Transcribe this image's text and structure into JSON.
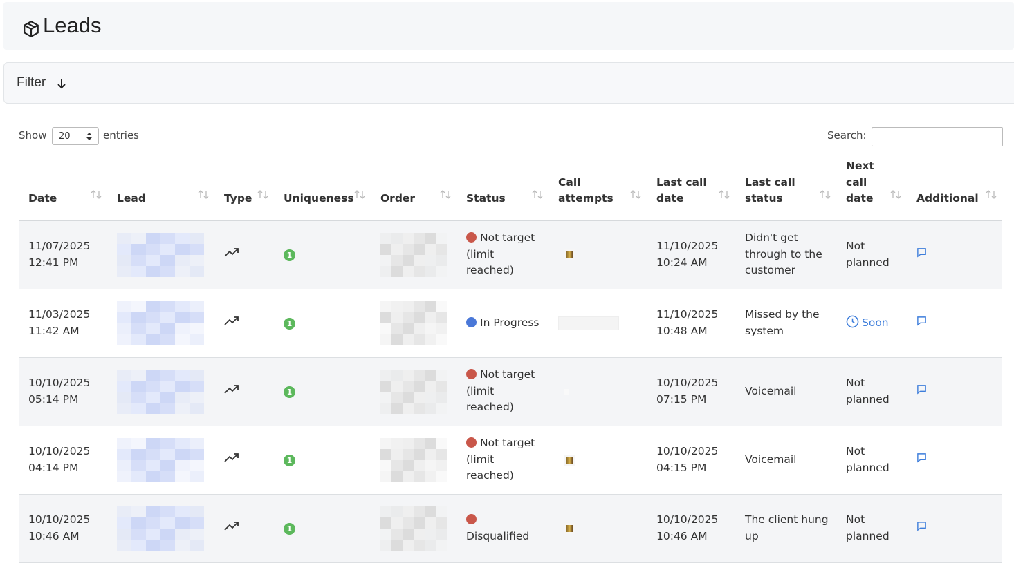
{
  "header": {
    "title": "Leads"
  },
  "filter": {
    "label": "Filter"
  },
  "controls": {
    "show_label": "Show",
    "page_size": "20",
    "entries_label": "entries",
    "search_label": "Search:"
  },
  "table": {
    "columns": [
      "Date",
      "Lead",
      "Type",
      "Uniqueness",
      "Order",
      "Status",
      "Call attempts",
      "Last call date",
      "Last call status",
      "Next call date",
      "Additional"
    ],
    "rows": [
      {
        "date": "11/07/2025",
        "time": "12:41 PM",
        "uniqueness": "1",
        "status": "Not target (limit reached)",
        "status_color": "#c9574a",
        "last_call_date": "11/10/2025",
        "last_call_time": "10:24 AM",
        "last_call_status": "Didn't get through to the customer",
        "next_call": "Not planned",
        "next_call_color": "#333333"
      },
      {
        "date": "11/03/2025",
        "time": "11:42 AM",
        "uniqueness": "1",
        "status": "In Progress",
        "status_color": "#4a78d8",
        "last_call_date": "11/10/2025",
        "last_call_time": "10:48 AM",
        "last_call_status": "Missed by the system",
        "next_call": "Soon",
        "next_call_color": "#3d7ddb",
        "next_call_icon": "clock"
      },
      {
        "date": "10/10/2025",
        "time": "05:14 PM",
        "uniqueness": "1",
        "status": "Not target (limit reached)",
        "status_color": "#c9574a",
        "last_call_date": "10/10/2025",
        "last_call_time": "07:15 PM",
        "last_call_status": "Voicemail",
        "next_call": "Not planned",
        "next_call_color": "#333333"
      },
      {
        "date": "10/10/2025",
        "time": "04:14 PM",
        "uniqueness": "1",
        "status": "Not target (limit reached)",
        "status_color": "#c9574a",
        "last_call_date": "10/10/2025",
        "last_call_time": "04:15 PM",
        "last_call_status": "Voicemail",
        "next_call": "Not planned",
        "next_call_color": "#333333"
      },
      {
        "date": "10/10/2025",
        "time": "10:46 AM",
        "uniqueness": "1",
        "status": "Disqualified",
        "status_color": "#c9574a",
        "last_call_date": "10/10/2025",
        "last_call_time": "10:46 AM",
        "last_call_status": "The client hung up",
        "next_call": "Not planned",
        "next_call_color": "#333333"
      }
    ]
  }
}
